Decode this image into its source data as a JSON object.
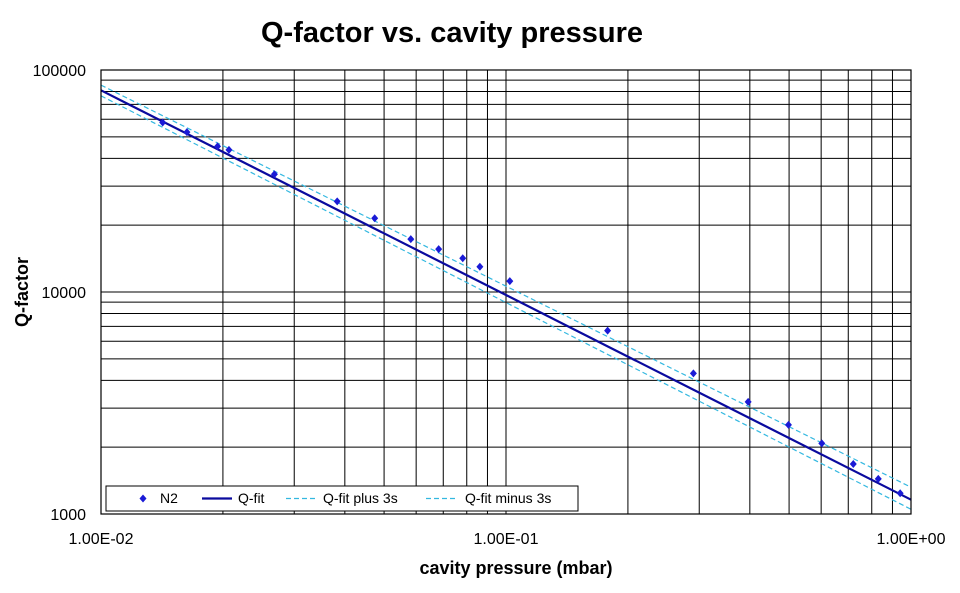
{
  "chart_data": {
    "type": "scatter",
    "title": "Q-factor vs. cavity pressure",
    "xlabel": "cavity pressure (mbar)",
    "ylabel": "Q-factor",
    "xscale": "log",
    "yscale": "log",
    "xlim": [
      0.01,
      1.0
    ],
    "ylim": [
      1000,
      100000
    ],
    "x_tick_labels": [
      "1.00E-02",
      "1.00E-01",
      "1.00E+00"
    ],
    "y_tick_labels": [
      "1000",
      "10000",
      "100000"
    ],
    "grid": true,
    "legend_position": "bottom-left",
    "series": [
      {
        "name": "N2",
        "kind": "markers",
        "marker": "diamond",
        "color": "#1a1ad6",
        "x": [
          0.0142,
          0.0163,
          0.0194,
          0.0207,
          0.0268,
          0.0383,
          0.0474,
          0.0582,
          0.0682,
          0.0782,
          0.0862,
          0.1022,
          0.1782,
          0.2902,
          0.3962,
          0.4982,
          0.6022,
          0.7202,
          0.8302,
          0.9402
        ],
        "y": [
          58000,
          52500,
          45300,
          43700,
          33900,
          25600,
          21500,
          17300,
          15600,
          14200,
          13000,
          11200,
          6700,
          4300,
          3200,
          2520,
          2080,
          1680,
          1440,
          1240
        ]
      },
      {
        "name": "Q-fit",
        "kind": "line",
        "color": "#0a0a9e",
        "x": [
          0.01,
          1.0
        ],
        "y": [
          81000,
          1160
        ]
      },
      {
        "name": "Q-fit plus 3s",
        "kind": "dashed-line",
        "color": "#33b8e0",
        "x": [
          0.01,
          1.0
        ],
        "y": [
          85500,
          1320
        ]
      },
      {
        "name": "Q-fit minus 3s",
        "kind": "dashed-line",
        "color": "#33b8e0",
        "x": [
          0.01,
          1.0
        ],
        "y": [
          76500,
          1050
        ]
      }
    ]
  },
  "colors": {
    "grid": "#000000",
    "marker": "#1a1ad6",
    "fit": "#0a0a9e",
    "band": "#33b8e0"
  }
}
